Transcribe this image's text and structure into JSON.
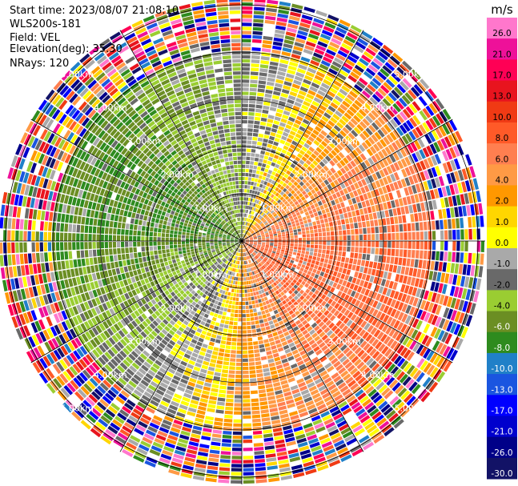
{
  "header": {
    "start_time": "Start time: 2023/08/07 21:08:10",
    "instrument": "WLS200s-181",
    "field": "Field: VEL",
    "elevation": "Elevation(deg): 35.30",
    "nrays": "NRays: 120"
  },
  "chart_data": {
    "type": "heatmap",
    "projection": "polar-ppi",
    "field": "VEL",
    "units": "m/s",
    "n_rays": 120,
    "range_rings_km": [
      1.0,
      2.0,
      3.0,
      4.0,
      5.0
    ],
    "ring_labels": [
      "1.00km",
      "2.00km",
      "3.00km",
      "4.00km",
      "5.00km"
    ],
    "colorbar": {
      "title": "m/s",
      "ticks": [
        "26.0",
        "21.0",
        "17.0",
        "13.0",
        "10.0",
        "8.0",
        "6.0",
        "4.0",
        "2.0",
        "1.0",
        "0.0",
        "-1.0",
        "-2.0",
        "-4.0",
        "-6.0",
        "-8.0",
        "-10.0",
        "-13.0",
        "-17.0",
        "-21.0",
        "-26.0",
        "-30.0"
      ],
      "colors": [
        "#ff77cc",
        "#ee1199",
        "#ff0055",
        "#e8141e",
        "#f03a14",
        "#ff5a28",
        "#ff7f50",
        "#ff9a45",
        "#ff9800",
        "#ffd600",
        "#ffff00",
        "#a9a9a9",
        "#696969",
        "#9acd32",
        "#6b8e23",
        "#2e8b1e",
        "#2080c8",
        "#1a55e0",
        "#0000ff",
        "#0000cd",
        "#000088",
        "#121266"
      ]
    },
    "grid": true
  }
}
